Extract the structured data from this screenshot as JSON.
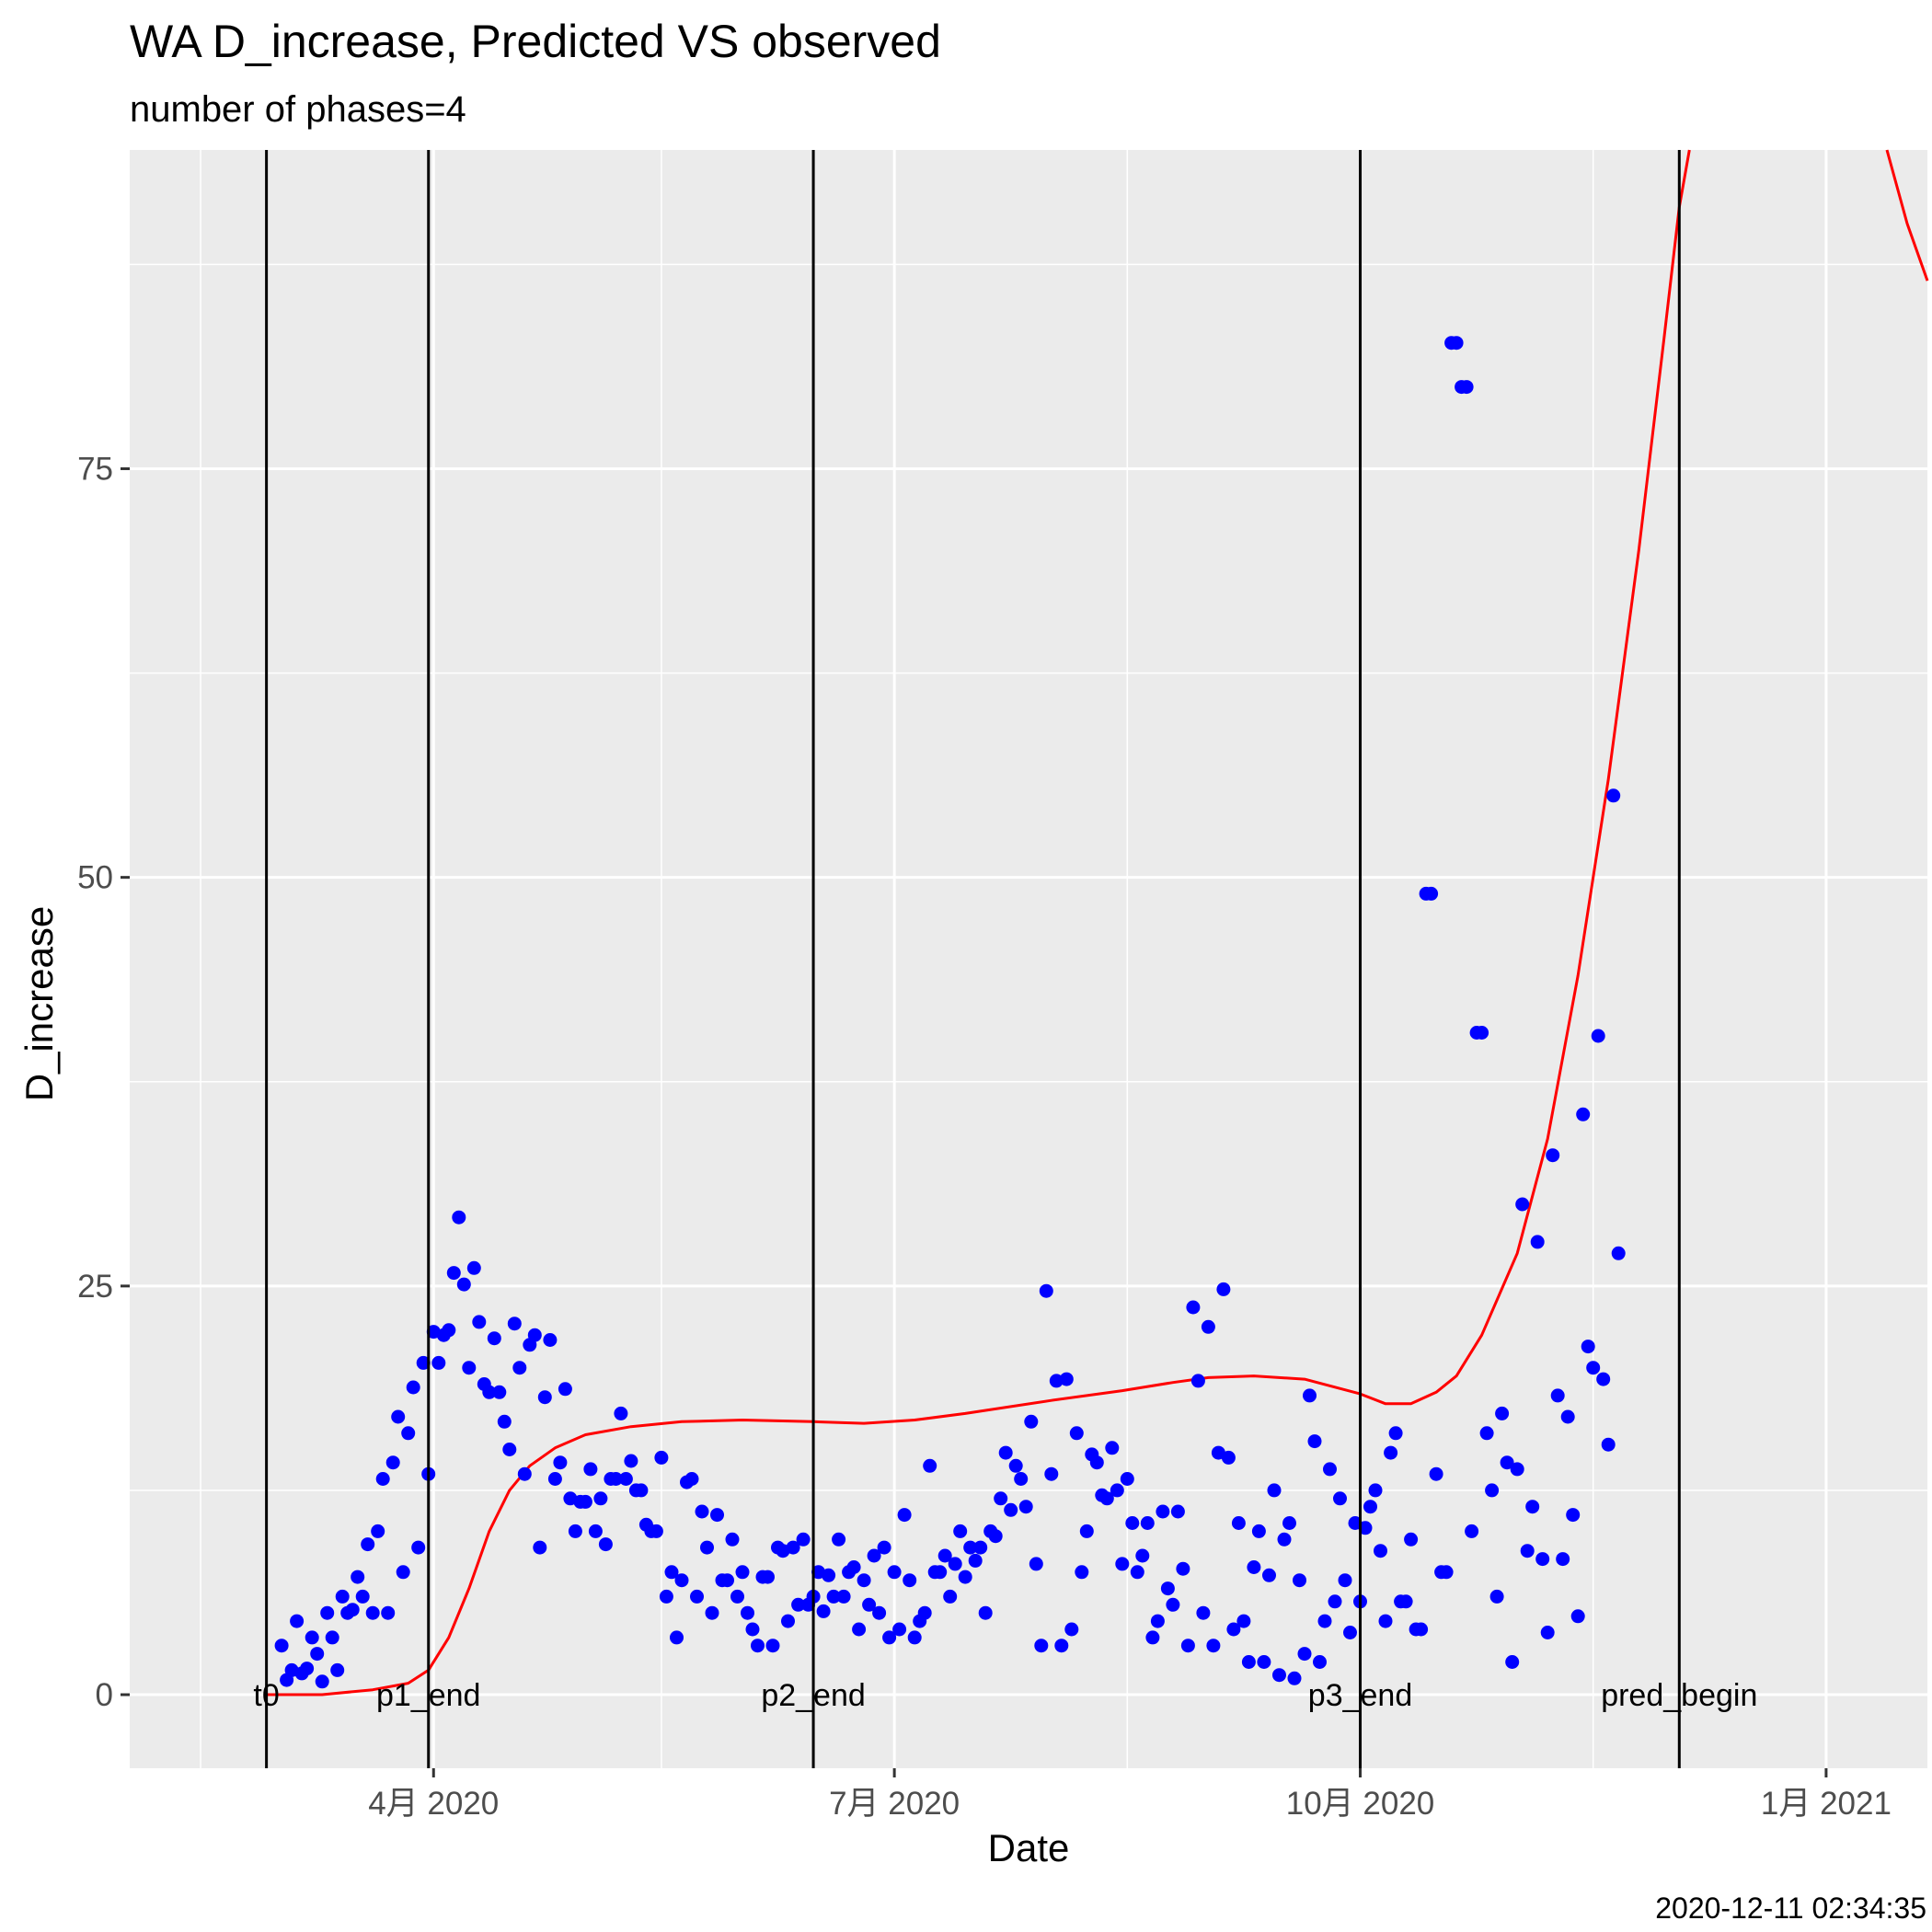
{
  "chart_data": {
    "type": "scatter",
    "title": "WA D_increase, Predicted VS observed",
    "subtitle": "number of phases=4",
    "xlabel": "Date",
    "ylabel": "D_increase",
    "caption": "2020-12-11 02:34:35",
    "x_type": "date",
    "xlim": [
      "2020-02-01",
      "2021-01-21"
    ],
    "ylim": [
      -4.5,
      94.5
    ],
    "x_ticks": [
      {
        "date": "2020-04-01",
        "label": "4月 2020"
      },
      {
        "date": "2020-07-01",
        "label": "7月 2020"
      },
      {
        "date": "2020-10-01",
        "label": "10月 2020"
      },
      {
        "date": "2021-01-01",
        "label": "1月 2021"
      }
    ],
    "y_ticks": [
      0,
      25,
      50,
      75
    ],
    "y_minor": [
      12.5,
      37.5,
      62.5,
      87.5
    ],
    "x_minor": [
      "2020-02-15",
      "2020-05-16",
      "2020-08-16",
      "2020-11-16"
    ],
    "grid": true,
    "legend": "none",
    "colors": {
      "panel": "#ebebeb",
      "grid": "#ffffff",
      "points": "#0000ff",
      "predicted": "#ff0000",
      "vlines": "#000000"
    },
    "vlines": [
      {
        "date": "2020-02-28",
        "label": "t0"
      },
      {
        "date": "2020-03-31",
        "label": "p1_end"
      },
      {
        "date": "2020-06-15",
        "label": "p2_end"
      },
      {
        "date": "2020-10-01",
        "label": "p3_end"
      },
      {
        "date": "2020-12-03",
        "label": "pred_begin"
      }
    ],
    "series": [
      {
        "kind": "points",
        "start_date": "2020-03-02",
        "values": [
          3,
          0.9,
          1.5,
          4.5,
          1.3,
          1.6,
          3.5,
          2.5,
          0.8,
          5,
          3.5,
          1.5,
          6,
          5,
          5.2,
          7.2,
          6,
          9.2,
          5,
          10,
          13.2,
          5,
          14.2,
          17,
          7.5,
          16,
          18.8,
          9,
          20.3,
          13.5,
          22.2,
          20.3,
          22,
          22.3,
          25.8,
          29.2,
          25.1,
          20,
          26.1,
          22.8,
          19,
          18.5,
          21.8,
          18.5,
          16.7,
          15,
          22.7,
          20,
          13.5,
          21.4,
          22,
          9,
          18.2,
          21.7,
          13.2,
          14.2,
          18.7,
          12,
          10,
          11.8,
          11.8,
          13.8,
          10,
          12,
          9.2,
          13.2,
          13.2,
          17.2,
          13.2,
          14.3,
          12.5,
          12.5,
          10.4,
          10,
          10,
          14.5,
          6,
          7.5,
          3.5,
          7,
          13,
          13.2,
          6,
          11.2,
          9,
          5,
          11,
          7,
          7,
          9.5,
          6,
          7.5,
          5,
          4,
          3,
          7.2,
          7.2,
          3,
          9,
          8.8,
          4.5,
          9,
          5.5,
          9.5,
          5.5,
          6,
          7.5,
          5.1,
          7.3,
          6,
          9.5,
          6,
          7.5,
          7.8,
          4,
          7,
          5.5,
          8.5,
          5,
          9,
          3.5,
          7.5,
          4,
          11,
          7,
          3.5,
          4.5,
          5,
          14,
          7.5,
          7.5,
          8.5,
          6,
          8,
          10,
          7.2,
          9,
          8.2,
          9,
          5,
          10,
          9.7,
          12,
          14.8,
          11.3,
          14,
          13.2,
          11.5,
          16.7,
          8,
          3,
          24.7,
          13.5,
          19.2,
          3,
          19.3,
          4,
          16,
          7.5,
          10,
          14.7,
          14.2,
          12.2,
          12,
          15.1,
          12.5,
          8,
          13.2,
          10.5,
          7.5,
          8.5,
          10.5,
          3.5,
          4.5,
          11.2,
          6.5,
          5.5,
          11.2,
          7.7,
          3,
          23.7,
          19.2,
          5,
          22.5,
          3,
          14.8,
          24.8,
          14.5,
          4,
          10.5,
          4.5,
          2,
          7.8,
          10,
          2,
          7.3,
          12.5,
          1.2,
          9.5,
          10.5,
          1,
          7,
          2.5,
          18.3,
          15.5,
          2,
          4.5,
          13.8,
          5.7,
          12,
          7,
          3.8,
          10.5,
          5.7,
          10.2,
          11.5,
          12.5,
          8.8,
          4.5,
          14.8,
          16,
          5.7,
          5.7,
          9.5,
          4,
          4,
          49,
          49,
          13.5,
          7.5,
          7.5,
          82.7,
          82.7,
          80,
          80,
          10,
          40.5,
          40.5,
          16,
          12.5,
          6,
          17.2,
          14.2,
          2,
          13.8,
          30,
          8.8,
          11.5,
          27.7,
          8.3,
          3.8,
          33,
          18.3,
          8.3,
          17,
          11,
          4.8,
          35.5,
          21.3,
          20,
          40.3,
          19.3,
          15.3,
          55,
          27
        ]
      },
      {
        "kind": "line",
        "name": "",
        "points": [
          [
            "2020-02-28",
            0
          ],
          [
            "2020-03-10",
            0
          ],
          [
            "2020-03-20",
            0.3
          ],
          [
            "2020-03-27",
            0.7
          ],
          [
            "2020-03-31",
            1.5
          ],
          [
            "2020-04-04",
            3.5
          ],
          [
            "2020-04-08",
            6.5
          ],
          [
            "2020-04-12",
            10
          ],
          [
            "2020-04-16",
            12.5
          ],
          [
            "2020-04-20",
            14
          ],
          [
            "2020-04-25",
            15.1
          ],
          [
            "2020-05-01",
            15.9
          ],
          [
            "2020-05-10",
            16.4
          ],
          [
            "2020-05-20",
            16.7
          ],
          [
            "2020-06-01",
            16.8
          ],
          [
            "2020-06-15",
            16.7
          ],
          [
            "2020-06-25",
            16.6
          ],
          [
            "2020-07-05",
            16.8
          ],
          [
            "2020-07-15",
            17.2
          ],
          [
            "2020-08-01",
            18
          ],
          [
            "2020-08-15",
            18.6
          ],
          [
            "2020-08-25",
            19.1
          ],
          [
            "2020-09-01",
            19.4
          ],
          [
            "2020-09-10",
            19.5
          ],
          [
            "2020-09-20",
            19.3
          ],
          [
            "2020-10-01",
            18.4
          ],
          [
            "2020-10-06",
            17.8
          ],
          [
            "2020-10-11",
            17.8
          ],
          [
            "2020-10-16",
            18.5
          ],
          [
            "2020-10-20",
            19.5
          ],
          [
            "2020-10-25",
            22
          ],
          [
            "2020-11-01",
            27
          ],
          [
            "2020-11-07",
            34
          ],
          [
            "2020-11-13",
            44
          ],
          [
            "2020-11-19",
            56
          ],
          [
            "2020-11-25",
            70
          ],
          [
            "2020-11-30",
            83
          ],
          [
            "2020-12-03",
            91
          ],
          [
            "2020-12-05",
            94.5
          ]
        ]
      },
      {
        "kind": "line",
        "name": "",
        "points": [
          [
            "2021-01-13",
            94.5
          ],
          [
            "2021-01-17",
            90
          ],
          [
            "2021-01-21",
            86.5
          ]
        ]
      }
    ]
  }
}
